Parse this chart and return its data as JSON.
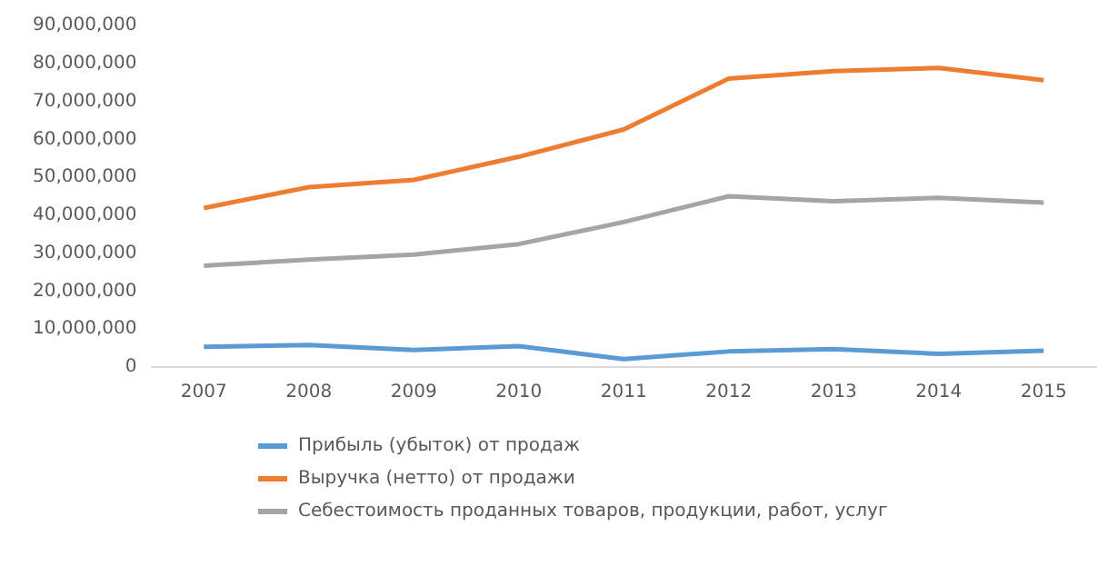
{
  "chart_data": {
    "type": "line",
    "categories": [
      "2007",
      "2008",
      "2009",
      "2010",
      "2011",
      "2012",
      "2013",
      "2014",
      "2015"
    ],
    "series": [
      {
        "name": "Прибыль (убыток) от продаж",
        "color": "#5b9bd5",
        "values": [
          5300000,
          5800000,
          4500000,
          5500000,
          2100000,
          4100000,
          4700000,
          3500000,
          4300000
        ]
      },
      {
        "name": "Выручка (нетто) от продажи",
        "color": "#ed7d31",
        "values": [
          41900000,
          47400000,
          49300000,
          55400000,
          62600000,
          76000000,
          78000000,
          78800000,
          75600000
        ]
      },
      {
        "name": "Себестоимость проданных товаров, продукции, работ, услуг",
        "color": "#a5a5a5",
        "values": [
          26700000,
          28300000,
          29600000,
          32400000,
          38200000,
          45000000,
          43700000,
          44600000,
          43300000
        ]
      }
    ],
    "ylim": [
      0,
      90000000
    ],
    "yticks": [
      0,
      {
        "value": 10000000,
        "label": "10,000,000"
      },
      {
        "value": 20000000,
        "label": "20,000,000"
      },
      {
        "value": 30000000,
        "label": "30,000,000"
      },
      {
        "value": 40000000,
        "label": "40,000,000"
      },
      {
        "value": 50000000,
        "label": "50,000,000"
      },
      {
        "value": 60000000,
        "label": "60,000,000"
      },
      {
        "value": 70000000,
        "label": "70,000,000"
      },
      {
        "value": 80000000,
        "label": "80,000,000"
      },
      {
        "value": 90000000,
        "label": "90,000,000"
      }
    ],
    "grid": false,
    "legend": "bottom",
    "marker": "none",
    "line_style": "solid"
  }
}
